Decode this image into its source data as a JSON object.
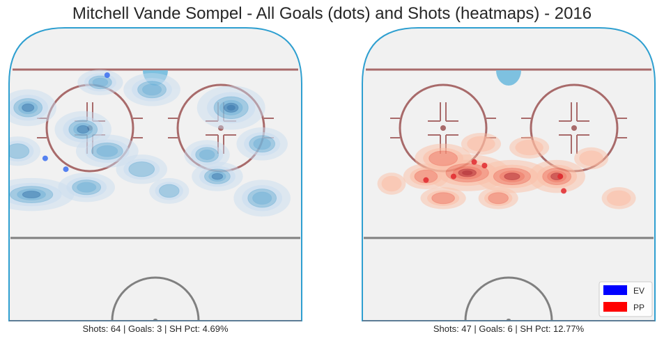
{
  "chart_data": {
    "type": "heatmap",
    "title": "Mitchell Vande Sompel - All Goals (dots) and Shots (heatmaps) - 2016",
    "legend": {
      "placement": "bottom-right",
      "entries": [
        {
          "label": "EV",
          "color": "#0000ff"
        },
        {
          "label": "PP",
          "color": "#ff0000"
        }
      ]
    },
    "panels": [
      {
        "name": "EV",
        "caption": "Shots: 64 | Goals: 3 | SH Pct: 4.69%",
        "shots": 64,
        "goals": 3,
        "sh_pct": 4.69,
        "color_light": "#c6dbef",
        "color_mid": "#6baed6",
        "color_dark": "#2b6faa",
        "dot_color": "#3a6df0",
        "goal_points": [
          [
            -14,
            70
          ],
          [
            -32,
            47
          ],
          [
            -26,
            44
          ]
        ],
        "shot_hotspots": [
          [
            -37,
            61,
            1.0,
            1.0,
            4
          ],
          [
            -21,
            55,
            1.0,
            1.0,
            4
          ],
          [
            -16,
            68,
            0.8,
            0.7,
            3
          ],
          [
            -1,
            66,
            1.0,
            0.9,
            3
          ],
          [
            22,
            61,
            1.2,
            1.2,
            5
          ],
          [
            15,
            48,
            0.8,
            0.8,
            3
          ],
          [
            -14,
            49,
            1.1,
            0.9,
            3
          ],
          [
            -20,
            39,
            1.0,
            0.8,
            3
          ],
          [
            -36,
            37,
            1.5,
            0.9,
            4
          ],
          [
            -4,
            44,
            0.9,
            0.8,
            2
          ],
          [
            18,
            42,
            0.9,
            0.8,
            4
          ],
          [
            31,
            36,
            1.0,
            1.0,
            3
          ],
          [
            31,
            51,
            0.9,
            0.9,
            3
          ],
          [
            -40,
            49,
            0.8,
            0.8,
            2
          ],
          [
            4,
            38,
            0.7,
            0.7,
            2
          ]
        ]
      },
      {
        "name": "PP",
        "caption": "Shots: 47 | Goals: 6 | SH Pct: 12.77%",
        "shots": 47,
        "goals": 6,
        "sh_pct": 12.77,
        "color_light": "#fcbba1",
        "color_mid": "#ef6f5a",
        "color_dark": "#b21f24",
        "dot_color": "#e0282e",
        "goal_points": [
          [
            -10,
            46
          ],
          [
            -24,
            41
          ],
          [
            -16,
            42
          ],
          [
            15,
            42
          ],
          [
            16,
            38
          ],
          [
            -7,
            45
          ]
        ],
        "shot_hotspots": [
          [
            -19,
            47,
            1.0,
            0.8,
            2
          ],
          [
            -12,
            43,
            1.5,
            1.0,
            5
          ],
          [
            1,
            42,
            1.3,
            0.9,
            4
          ],
          [
            14,
            42,
            1.0,
            0.9,
            4
          ],
          [
            -19,
            36,
            0.8,
            0.6,
            2
          ],
          [
            -24,
            42,
            0.8,
            0.7,
            2
          ],
          [
            -8,
            51,
            0.7,
            0.6,
            1
          ],
          [
            6,
            50,
            0.7,
            0.6,
            1
          ],
          [
            24,
            47,
            0.6,
            0.6,
            1
          ],
          [
            -34,
            40,
            0.5,
            0.6,
            1
          ],
          [
            32,
            36,
            0.6,
            0.6,
            1
          ],
          [
            -3,
            36,
            0.7,
            0.6,
            2
          ]
        ]
      }
    ]
  }
}
